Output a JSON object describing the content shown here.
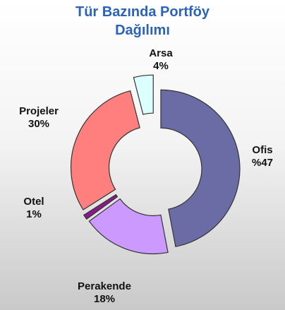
{
  "chart_data": {
    "type": "pie",
    "title": "Tür Bazında Portföy Dağılımı",
    "categories": [
      "Ofis",
      "Perakende",
      "Otel",
      "Projeler",
      "Arsa"
    ],
    "values": [
      47,
      18,
      1,
      30,
      4
    ],
    "value_labels": [
      "%47",
      "18%",
      "1%",
      "30%",
      "4%"
    ],
    "colors": [
      "#6b6ba6",
      "#cc99ff",
      "#8a1a8a",
      "#ff7f7f",
      "#dcffff"
    ]
  }
}
